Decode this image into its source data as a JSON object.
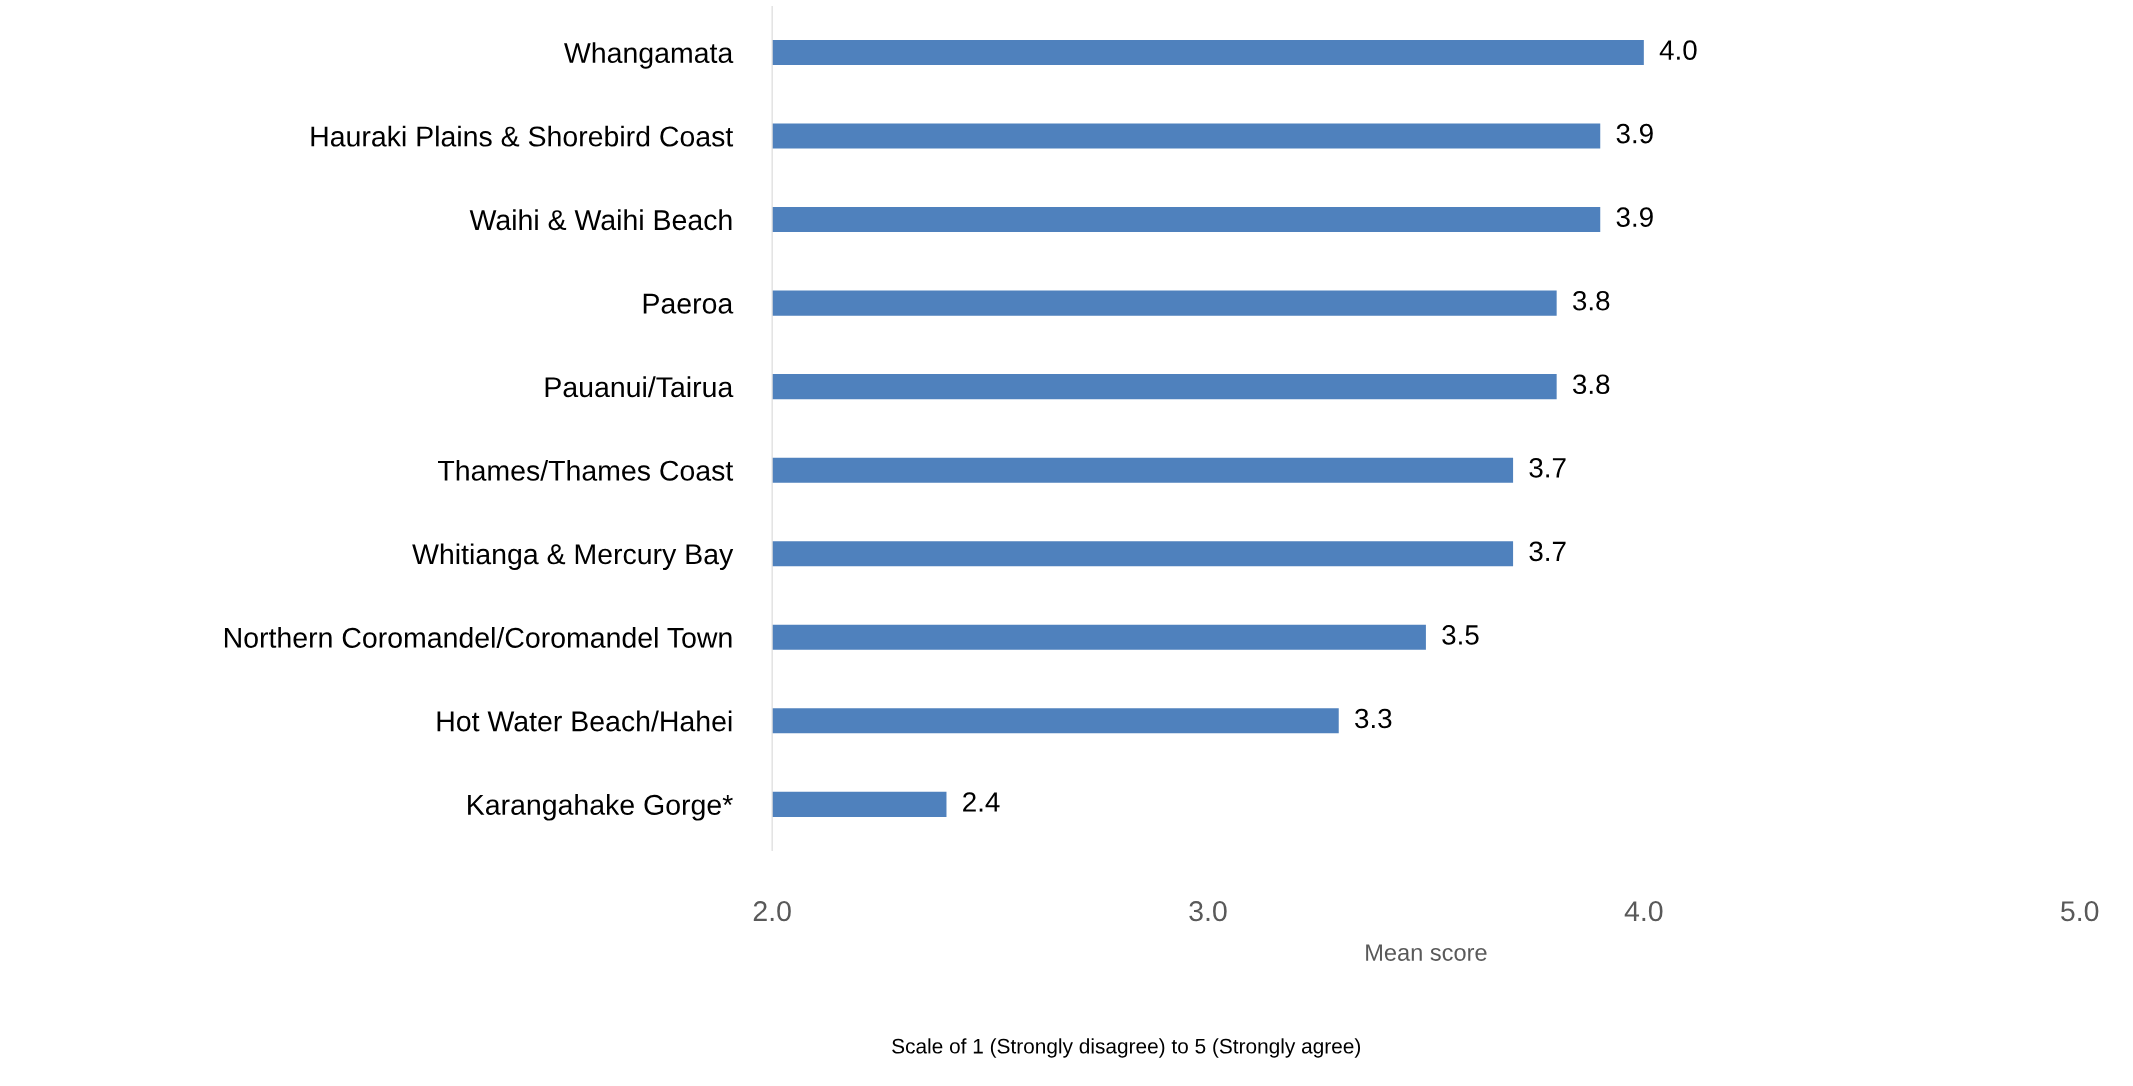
{
  "chart_data": {
    "type": "bar",
    "orientation": "horizontal",
    "categories": [
      "Whangamata",
      "Hauraki Plains & Shorebird Coast",
      "Waihi & Waihi Beach",
      "Paeroa",
      "Pauanui/Tairua",
      "Thames/Thames Coast",
      "Whitianga & Mercury Bay",
      "Northern Coromandel/Coromandel Town",
      "Hot Water Beach/Hahei",
      "Karangahake Gorge*"
    ],
    "values": [
      4.0,
      3.9,
      3.9,
      3.8,
      3.8,
      3.7,
      3.7,
      3.5,
      3.3,
      2.4
    ],
    "color": "#4f81bd",
    "xlim": [
      2.0,
      5.0
    ],
    "xticks": [
      {
        "value": 2,
        "label": "2.0"
      },
      {
        "value": 3,
        "label": "3.0"
      },
      {
        "value": 4,
        "label": "4.0"
      },
      {
        "value": 5,
        "label": "5.0"
      }
    ],
    "xlabel": "Mean score",
    "annotations": [
      "Scale of 1 (Strongly disagree) to 5 (Strongly agree)"
    ],
    "value_labels": [
      "4.0",
      "3.9",
      "3.9",
      "3.8",
      "3.8",
      "3.7",
      "3.7",
      "3.5",
      "3.3",
      "2.4"
    ],
    "grid": false,
    "legend": false
  }
}
